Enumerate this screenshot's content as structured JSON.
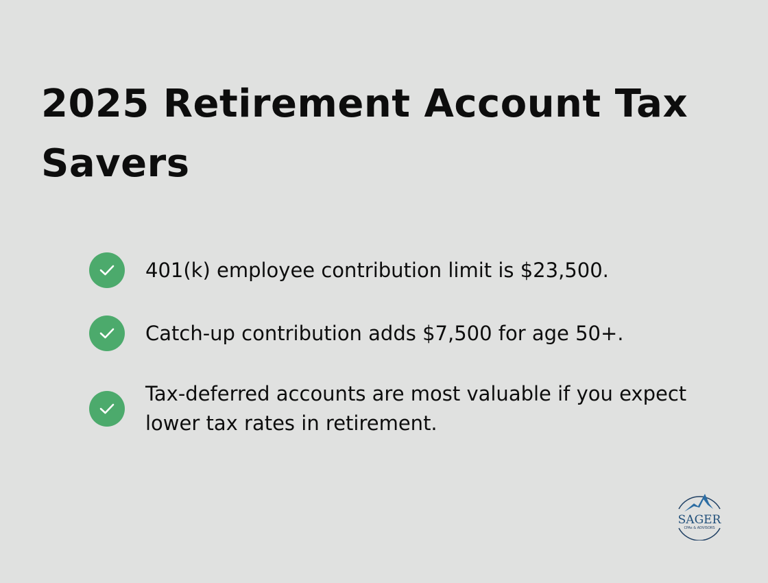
{
  "header": {
    "title": "2025 Retirement Account Tax Savers"
  },
  "checklist": {
    "items": [
      {
        "text": "401(k) employee contribution limit is $23,500.",
        "icon": "check-icon"
      },
      {
        "text": "Catch-up contribution adds $7,500 for age 50+.",
        "icon": "check-icon"
      },
      {
        "text": "Tax-deferred accounts are most valuable if you expect lower tax rates in retirement.",
        "icon": "check-icon"
      }
    ]
  },
  "colors": {
    "background": "#e0e1e0",
    "check": "#4caa6c",
    "logo": "#1f4e79"
  },
  "logo": {
    "name": "SAGER",
    "tagline": "CPAs & ADVISORS"
  }
}
